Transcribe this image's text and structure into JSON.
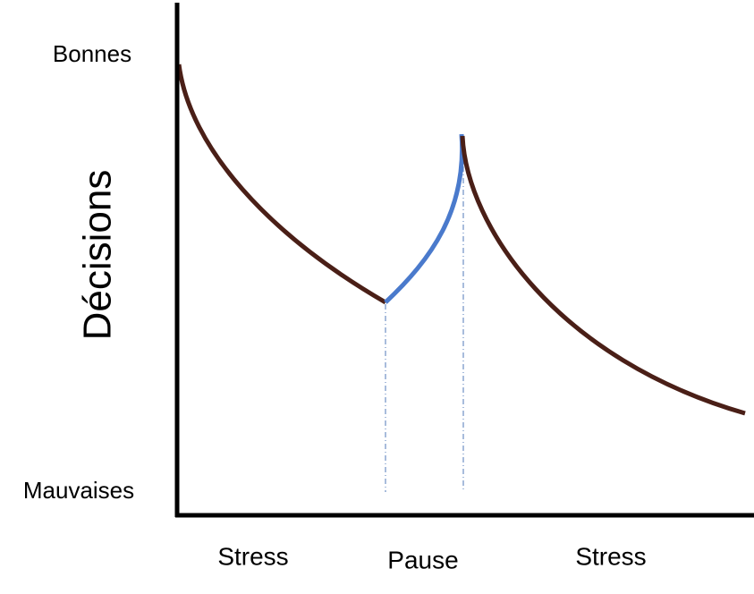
{
  "y_axis": {
    "title": "Décisions",
    "top_label": "Bonnes",
    "bottom_label": "Mauvaises"
  },
  "phases": [
    "Stress",
    "Pause",
    "Stress"
  ]
}
